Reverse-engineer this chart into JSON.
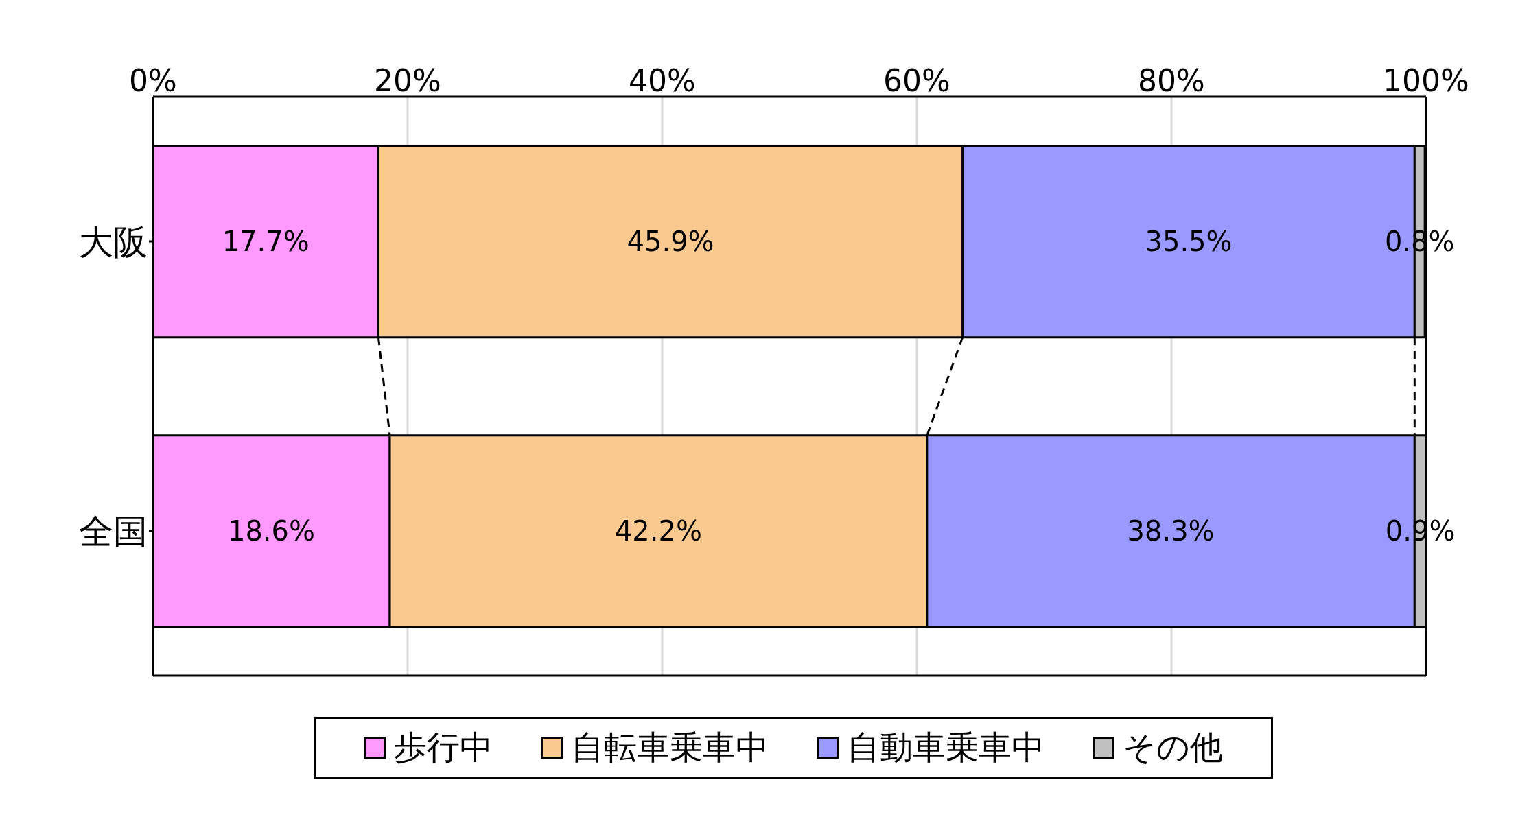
{
  "chart_data": {
    "type": "bar",
    "orientation": "horizontal",
    "stacked": true,
    "categories": [
      "大阪",
      "全国"
    ],
    "series": [
      {
        "name": "歩行中",
        "color": "#ff99ff",
        "values": [
          17.7,
          18.6
        ],
        "value_labels": [
          "17.7%",
          "18.6%"
        ]
      },
      {
        "name": "自転車乗車中",
        "color": "#fac990",
        "values": [
          45.9,
          42.2
        ],
        "value_labels": [
          "45.9%",
          "42.2%"
        ]
      },
      {
        "name": "自動車乗車中",
        "color": "#9999ff",
        "values": [
          35.5,
          38.3
        ],
        "value_labels": [
          "35.5%",
          "38.3%"
        ]
      },
      {
        "name": "その他",
        "color": "#c0c0c0",
        "values": [
          0.8,
          0.9
        ],
        "value_labels": [
          "0.8%",
          "0.9%"
        ]
      }
    ],
    "xlim": [
      0,
      100
    ],
    "xticks": [
      {
        "value": 0,
        "label": "0%"
      },
      {
        "value": 20,
        "label": "20%"
      },
      {
        "value": 40,
        "label": "40%"
      },
      {
        "value": 60,
        "label": "60%"
      },
      {
        "value": 80,
        "label": "80%"
      },
      {
        "value": 100,
        "label": "100%"
      }
    ],
    "grid": "x",
    "legend": "bottom"
  }
}
